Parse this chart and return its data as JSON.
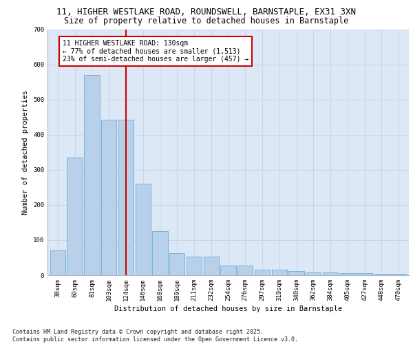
{
  "title_line1": "11, HIGHER WESTLAKE ROAD, ROUNDSWELL, BARNSTAPLE, EX31 3XN",
  "title_line2": "Size of property relative to detached houses in Barnstaple",
  "xlabel": "Distribution of detached houses by size in Barnstaple",
  "ylabel": "Number of detached properties",
  "categories": [
    "38sqm",
    "60sqm",
    "81sqm",
    "103sqm",
    "124sqm",
    "146sqm",
    "168sqm",
    "189sqm",
    "211sqm",
    "232sqm",
    "254sqm",
    "276sqm",
    "297sqm",
    "319sqm",
    "340sqm",
    "362sqm",
    "384sqm",
    "405sqm",
    "427sqm",
    "448sqm",
    "470sqm"
  ],
  "values": [
    70,
    335,
    570,
    443,
    443,
    260,
    125,
    63,
    52,
    52,
    28,
    28,
    15,
    15,
    12,
    7,
    7,
    5,
    5,
    4,
    4
  ],
  "bar_color": "#b8d0ea",
  "bar_edge_color": "#6aaad4",
  "vline_x_index": 4.0,
  "vline_color": "#cc0000",
  "annotation_text": "11 HIGHER WESTLAKE ROAD: 130sqm\n← 77% of detached houses are smaller (1,513)\n23% of semi-detached houses are larger (457) →",
  "annotation_box_color": "#ffffff",
  "annotation_box_edge": "#cc0000",
  "ylim": [
    0,
    700
  ],
  "yticks": [
    0,
    100,
    200,
    300,
    400,
    500,
    600,
    700
  ],
  "grid_color": "#c8d4e8",
  "bg_color": "#dce8f5",
  "footnote": "Contains HM Land Registry data © Crown copyright and database right 2025.\nContains public sector information licensed under the Open Government Licence v3.0.",
  "title_fontsize": 9,
  "subtitle_fontsize": 8.5,
  "axis_label_fontsize": 7.5,
  "tick_fontsize": 6.5,
  "annotation_fontsize": 7,
  "footnote_fontsize": 6
}
